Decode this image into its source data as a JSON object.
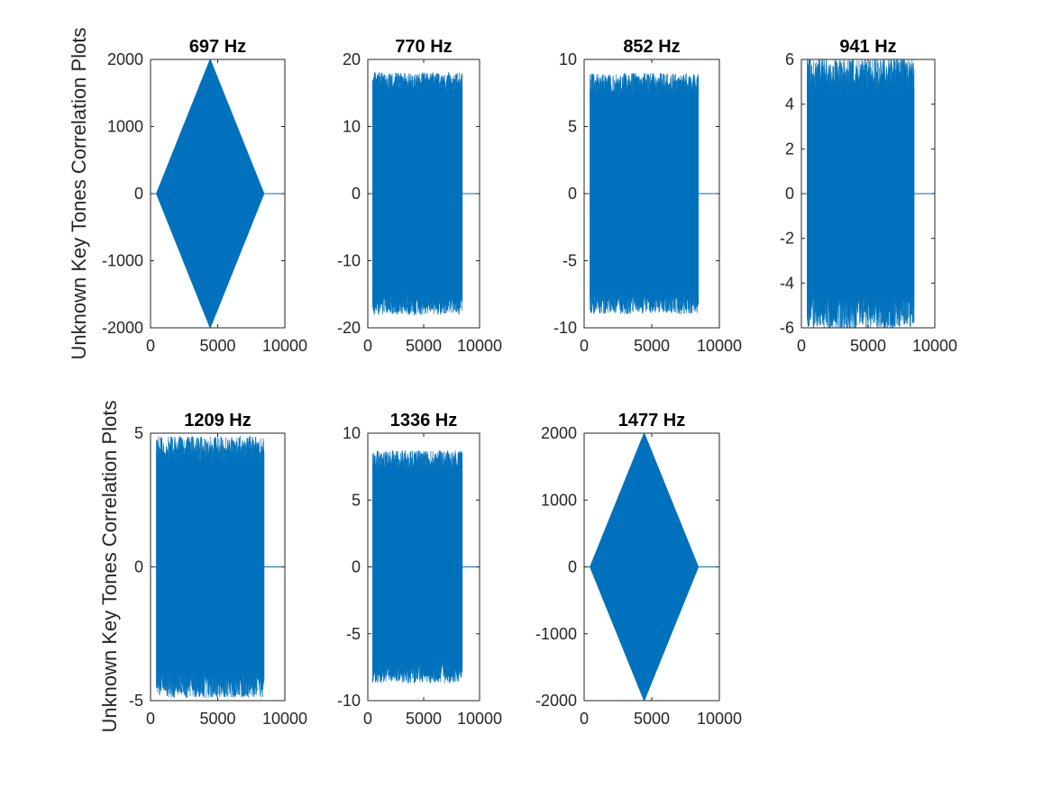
{
  "chart_data": [
    {
      "type": "line",
      "title": "697 Hz",
      "ylabel": "Unknown Key Tones Correlation Plots",
      "xlim": [
        0,
        10000
      ],
      "ylim": [
        -2000,
        2000
      ],
      "xticks": [
        0,
        5000,
        10000
      ],
      "xtick_labels": [
        "0",
        "5000",
        "10000"
      ],
      "yticks": [
        -2000,
        -1000,
        0,
        1000,
        2000
      ],
      "ytick_labels": [
        "-2000",
        "-1000",
        "0",
        "1000",
        "2000"
      ],
      "envelope": "diamond",
      "x_range": [
        440,
        8440
      ],
      "peak_x": 4440,
      "peak": 2000,
      "noise_ripple": 0
    },
    {
      "type": "line",
      "title": "770 Hz",
      "ylabel": "",
      "xlim": [
        0,
        10000
      ],
      "ylim": [
        -20,
        20
      ],
      "xticks": [
        0,
        5000,
        10000
      ],
      "xtick_labels": [
        "0",
        "5000",
        "10000"
      ],
      "yticks": [
        -20,
        -10,
        0,
        10,
        20
      ],
      "ytick_labels": [
        "-20",
        "-10",
        "0",
        "10",
        "20"
      ],
      "envelope": "flat",
      "x_range": [
        440,
        8440
      ],
      "peak": 16.5,
      "noise_ripple": 1.6
    },
    {
      "type": "line",
      "title": "852 Hz",
      "ylabel": "",
      "xlim": [
        0,
        10000
      ],
      "ylim": [
        -10,
        10
      ],
      "xticks": [
        0,
        5000,
        10000
      ],
      "xtick_labels": [
        "0",
        "5000",
        "10000"
      ],
      "yticks": [
        -10,
        -5,
        0,
        5,
        10
      ],
      "ytick_labels": [
        "-10",
        "-5",
        "0",
        "5",
        "10"
      ],
      "envelope": "flat",
      "x_range": [
        440,
        8440
      ],
      "peak": 8.2,
      "noise_ripple": 0.8
    },
    {
      "type": "line",
      "title": "941 Hz",
      "ylabel": "",
      "xlim": [
        0,
        10000
      ],
      "ylim": [
        -6,
        6
      ],
      "xticks": [
        0,
        5000,
        10000
      ],
      "xtick_labels": [
        "0",
        "5000",
        "10000"
      ],
      "yticks": [
        -6,
        -4,
        -2,
        0,
        2,
        4,
        6
      ],
      "ytick_labels": [
        "-6",
        "-4",
        "-2",
        "0",
        "2",
        "4",
        "6"
      ],
      "envelope": "flat",
      "x_range": [
        440,
        8440
      ],
      "peak": 5.3,
      "noise_ripple": 0.8
    },
    {
      "type": "line",
      "title": "1209 Hz",
      "ylabel": "Unknown Key Tones Correlation Plots",
      "xlim": [
        0,
        10000
      ],
      "ylim": [
        -5,
        5
      ],
      "xticks": [
        0,
        5000,
        10000
      ],
      "xtick_labels": [
        "0",
        "5000",
        "10000"
      ],
      "yticks": [
        -5,
        0,
        5
      ],
      "ytick_labels": [
        "-5",
        "0",
        "5"
      ],
      "envelope": "flat",
      "x_range": [
        440,
        8440
      ],
      "peak": 4.4,
      "noise_ripple": 0.5
    },
    {
      "type": "line",
      "title": "1336 Hz",
      "ylabel": "",
      "xlim": [
        0,
        10000
      ],
      "ylim": [
        -10,
        10
      ],
      "xticks": [
        0,
        5000,
        10000
      ],
      "xtick_labels": [
        "0",
        "5000",
        "10000"
      ],
      "yticks": [
        -10,
        -5,
        0,
        5,
        10
      ],
      "ytick_labels": [
        "-10",
        "-5",
        "0",
        "5",
        "10"
      ],
      "envelope": "flat",
      "x_range": [
        440,
        8440
      ],
      "peak": 7.9,
      "noise_ripple": 0.8
    },
    {
      "type": "line",
      "title": "1477 Hz",
      "ylabel": "",
      "xlim": [
        0,
        10000
      ],
      "ylim": [
        -2000,
        2000
      ],
      "xticks": [
        0,
        5000,
        10000
      ],
      "xtick_labels": [
        "0",
        "5000",
        "10000"
      ],
      "yticks": [
        -2000,
        -1000,
        0,
        1000,
        2000
      ],
      "ytick_labels": [
        "-2000",
        "-1000",
        "0",
        "1000",
        "2000"
      ],
      "envelope": "diamond",
      "x_range": [
        440,
        8440
      ],
      "peak_x": 4440,
      "peak": 2000,
      "noise_ripple": 0
    }
  ],
  "colors": {
    "series": "#0072BD",
    "axis": "#262626",
    "background": "#ffffff"
  }
}
